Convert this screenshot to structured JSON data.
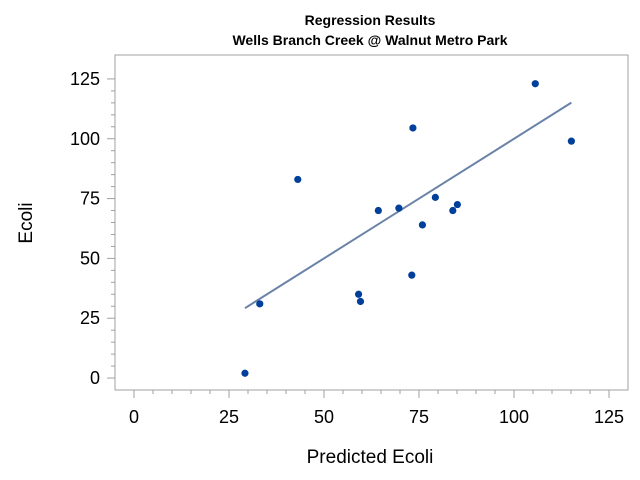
{
  "chart_data": {
    "type": "scatter",
    "title": "Regression Results",
    "subtitle": "Wells Branch Creek @ Walnut Metro Park",
    "xlabel": "Predicted Ecoli",
    "ylabel": "Ecoli",
    "xlim": [
      -5,
      130
    ],
    "ylim": [
      -5,
      135
    ],
    "xticks": [
      0,
      25,
      50,
      75,
      100,
      125
    ],
    "yticks": [
      0,
      25,
      50,
      75,
      100,
      125
    ],
    "grid": false,
    "legend": "none",
    "colors": {
      "points": "#003f9a",
      "fit_line": "#6a82a8",
      "frame": "#a0a0a0"
    },
    "series": [
      {
        "kind": "scatter",
        "points": [
          {
            "x": 29.2,
            "y": 2
          },
          {
            "x": 33.1,
            "y": 31
          },
          {
            "x": 43.1,
            "y": 83
          },
          {
            "x": 59.1,
            "y": 35
          },
          {
            "x": 59.6,
            "y": 32
          },
          {
            "x": 64.3,
            "y": 70
          },
          {
            "x": 69.7,
            "y": 71
          },
          {
            "x": 73.1,
            "y": 43
          },
          {
            "x": 73.4,
            "y": 104.5
          },
          {
            "x": 75.9,
            "y": 64
          },
          {
            "x": 79.3,
            "y": 75.5
          },
          {
            "x": 83.9,
            "y": 70
          },
          {
            "x": 85.1,
            "y": 72.5
          },
          {
            "x": 105.6,
            "y": 123
          },
          {
            "x": 115.1,
            "y": 99
          }
        ]
      },
      {
        "kind": "fit",
        "points": [
          {
            "x": 29.2,
            "y": 29.2
          },
          {
            "x": 115.1,
            "y": 115.1
          }
        ]
      }
    ]
  }
}
